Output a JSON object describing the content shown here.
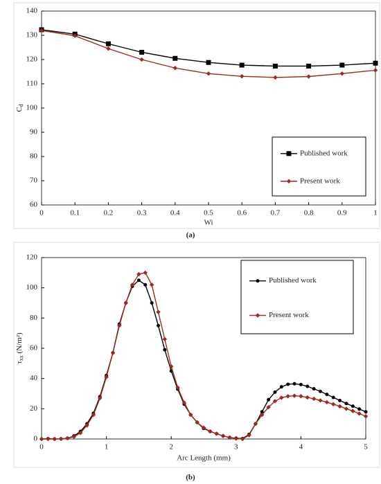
{
  "chart_data": [
    {
      "type": "line",
      "caption": "(a)",
      "x_label": "Wi",
      "y_label": {
        "text": "C",
        "sub": "d"
      },
      "x": [
        0,
        0.1,
        0.2,
        0.3,
        0.4,
        0.5,
        0.6,
        0.7,
        0.8,
        0.9,
        1
      ],
      "xlim": [
        0,
        1
      ],
      "xticks": [
        0,
        0.1,
        0.2,
        0.3,
        0.4,
        0.5,
        0.6,
        0.7,
        0.8,
        0.9,
        1
      ],
      "ylim": [
        60,
        140
      ],
      "yticks": [
        60,
        70,
        80,
        90,
        100,
        110,
        120,
        130,
        140
      ],
      "series": [
        {
          "name": "Published work",
          "color": "#000000",
          "marker": "square",
          "values": [
            132.3,
            130.5,
            126.5,
            123,
            120.5,
            118.8,
            117.7,
            117.3,
            117.3,
            117.7,
            118.5
          ]
        },
        {
          "name": "Present work",
          "color": "#a0281e",
          "marker": "diamond",
          "values": [
            132,
            129.8,
            124.5,
            120,
            116.5,
            114.2,
            113.1,
            112.6,
            113,
            114.2,
            115.6
          ]
        }
      ]
    },
    {
      "type": "line",
      "caption": "(b)",
      "x_label": "Arc Length (mm)",
      "y_label": {
        "text": "τ",
        "sub": "xx",
        "unit": " (N/m²)"
      },
      "x": [
        0,
        0.1,
        0.2,
        0.3,
        0.4,
        0.5,
        0.6,
        0.7,
        0.8,
        0.9,
        1,
        1.1,
        1.2,
        1.3,
        1.4,
        1.5,
        1.6,
        1.7,
        1.8,
        1.9,
        2,
        2.1,
        2.2,
        2.3,
        2.4,
        2.5,
        2.6,
        2.7,
        2.8,
        2.9,
        3,
        3.1,
        3.2,
        3.3,
        3.4,
        3.5,
        3.6,
        3.7,
        3.8,
        3.9,
        4,
        4.1,
        4.2,
        4.3,
        4.4,
        4.5,
        4.6,
        4.7,
        4.8,
        4.9,
        5
      ],
      "xlim": [
        0,
        5
      ],
      "xticks": [
        0,
        1,
        2,
        3,
        4,
        5
      ],
      "ylim": [
        0,
        120
      ],
      "yticks": [
        0,
        20,
        40,
        60,
        80,
        100,
        120
      ],
      "series": [
        {
          "name": "Published work",
          "color": "#000000",
          "marker": "circle",
          "values": [
            0,
            0.2,
            0,
            0.1,
            0.5,
            2,
            5,
            10,
            17,
            28,
            42,
            57,
            76,
            90,
            101,
            105,
            102,
            90,
            75,
            59,
            45,
            33,
            23,
            16,
            11,
            7,
            5,
            3.5,
            2,
            1,
            0.5,
            0.3,
            3,
            10,
            18,
            26,
            31,
            34.5,
            36.2,
            36.5,
            36,
            34.8,
            33.2,
            31.5,
            29.5,
            27.5,
            25.5,
            23.5,
            21.7,
            19.8,
            18
          ]
        },
        {
          "name": "Present work",
          "color": "#a0281e",
          "marker": "diamond",
          "values": [
            0,
            0,
            0,
            0.1,
            0.5,
            1.5,
            4,
            9,
            16,
            27,
            41,
            57,
            75,
            90,
            102,
            109,
            110,
            102,
            84,
            66,
            48,
            34,
            24,
            16,
            11,
            7.5,
            5,
            3.5,
            2,
            1,
            0.3,
            0,
            2.5,
            10,
            16,
            21,
            25,
            27.3,
            28.3,
            28.6,
            28.3,
            27.5,
            26.6,
            25.5,
            24.3,
            23,
            21.6,
            20,
            18.5,
            16.8,
            15
          ]
        }
      ]
    }
  ]
}
